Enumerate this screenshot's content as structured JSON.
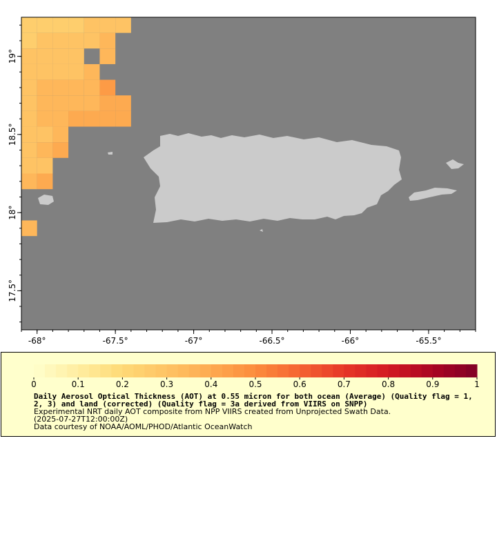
{
  "map": {
    "x_ticks": [
      "-68°",
      "-67.5°",
      "-67°",
      "-66.5°",
      "-66°",
      "-65.5°"
    ],
    "y_ticks": [
      "19°",
      "18.5°",
      "18°",
      "17.5°"
    ],
    "x_range": [
      -68.1,
      -65.2
    ],
    "y_range": [
      17.25,
      19.25
    ],
    "background_color": "#808080",
    "land_color": "#cbcbcb"
  },
  "legend": {
    "tick_labels": [
      "0",
      "0.1",
      "0.2",
      "0.3",
      "0.4",
      "0.5",
      "0.6",
      "0.7",
      "0.8",
      "0.9",
      "1"
    ],
    "range": [
      0,
      1
    ],
    "colormap": "YlOrRd",
    "background_color": "#ffffcc"
  },
  "caption": {
    "title_line1": "Daily Aerosol Optical Thickness (AOT) at 0.55 micron for both ocean (Average) (Quality flag = 1,",
    "title_line2": "2, 3) and land (corrected) (Quality flag = 3a derived from VIIRS on SNPP)",
    "description": "Experimental NRT daily AOT composite from NPP VIIRS created from Unprojected Swath Data.",
    "timestamp": "(2025-07-27T12:00:00Z)",
    "credit": "Data courtesy of NOAA/AOML/PHOD/Atlantic OceanWatch"
  },
  "aot_cells": [
    {
      "lon": -68.05,
      "lat": 19.2,
      "value": 0.25
    },
    {
      "lon": -67.95,
      "lat": 19.2,
      "value": 0.25
    },
    {
      "lon": -67.85,
      "lat": 19.2,
      "value": 0.25
    },
    {
      "lon": -67.75,
      "lat": 19.2,
      "value": 0.25
    },
    {
      "lon": -67.65,
      "lat": 19.2,
      "value": 0.3
    },
    {
      "lon": -67.55,
      "lat": 19.2,
      "value": 0.3
    },
    {
      "lon": -67.45,
      "lat": 19.2,
      "value": 0.3
    },
    {
      "lon": -68.05,
      "lat": 19.1,
      "value": 0.25
    },
    {
      "lon": -67.95,
      "lat": 19.1,
      "value": 0.3
    },
    {
      "lon": -67.85,
      "lat": 19.1,
      "value": 0.3
    },
    {
      "lon": -67.75,
      "lat": 19.1,
      "value": 0.3
    },
    {
      "lon": -67.65,
      "lat": 19.1,
      "value": 0.3
    },
    {
      "lon": -67.55,
      "lat": 19.1,
      "value": 0.35
    },
    {
      "lon": -68.05,
      "lat": 19.0,
      "value": 0.3
    },
    {
      "lon": -67.95,
      "lat": 19.0,
      "value": 0.3
    },
    {
      "lon": -67.85,
      "lat": 19.0,
      "value": 0.3
    },
    {
      "lon": -67.75,
      "lat": 19.0,
      "value": 0.3
    },
    {
      "lon": -67.55,
      "lat": 19.0,
      "value": 0.35
    },
    {
      "lon": -68.05,
      "lat": 18.9,
      "value": 0.3
    },
    {
      "lon": -67.95,
      "lat": 18.9,
      "value": 0.3
    },
    {
      "lon": -67.85,
      "lat": 18.9,
      "value": 0.3
    },
    {
      "lon": -67.75,
      "lat": 18.9,
      "value": 0.3
    },
    {
      "lon": -67.65,
      "lat": 18.9,
      "value": 0.35
    },
    {
      "lon": -68.05,
      "lat": 18.8,
      "value": 0.3
    },
    {
      "lon": -67.95,
      "lat": 18.8,
      "value": 0.35
    },
    {
      "lon": -67.85,
      "lat": 18.8,
      "value": 0.35
    },
    {
      "lon": -67.75,
      "lat": 18.8,
      "value": 0.35
    },
    {
      "lon": -67.65,
      "lat": 18.8,
      "value": 0.35
    },
    {
      "lon": -67.55,
      "lat": 18.8,
      "value": 0.45
    },
    {
      "lon": -68.05,
      "lat": 18.7,
      "value": 0.3
    },
    {
      "lon": -67.95,
      "lat": 18.7,
      "value": 0.35
    },
    {
      "lon": -67.85,
      "lat": 18.7,
      "value": 0.35
    },
    {
      "lon": -67.75,
      "lat": 18.7,
      "value": 0.35
    },
    {
      "lon": -67.65,
      "lat": 18.7,
      "value": 0.35
    },
    {
      "lon": -67.55,
      "lat": 18.7,
      "value": 0.4
    },
    {
      "lon": -67.45,
      "lat": 18.7,
      "value": 0.4
    },
    {
      "lon": -68.05,
      "lat": 18.6,
      "value": 0.3
    },
    {
      "lon": -67.95,
      "lat": 18.6,
      "value": 0.35
    },
    {
      "lon": -67.85,
      "lat": 18.6,
      "value": 0.35
    },
    {
      "lon": -67.75,
      "lat": 18.6,
      "value": 0.4
    },
    {
      "lon": -67.65,
      "lat": 18.6,
      "value": 0.4
    },
    {
      "lon": -67.55,
      "lat": 18.6,
      "value": 0.4
    },
    {
      "lon": -67.45,
      "lat": 18.6,
      "value": 0.4
    },
    {
      "lon": -68.05,
      "lat": 18.5,
      "value": 0.3
    },
    {
      "lon": -67.95,
      "lat": 18.5,
      "value": 0.3
    },
    {
      "lon": -67.85,
      "lat": 18.5,
      "value": 0.35
    },
    {
      "lon": -68.05,
      "lat": 18.4,
      "value": 0.3
    },
    {
      "lon": -67.95,
      "lat": 18.4,
      "value": 0.35
    },
    {
      "lon": -67.85,
      "lat": 18.4,
      "value": 0.4
    },
    {
      "lon": -68.05,
      "lat": 18.3,
      "value": 0.3
    },
    {
      "lon": -67.95,
      "lat": 18.3,
      "value": 0.3
    },
    {
      "lon": -68.05,
      "lat": 18.2,
      "value": 0.35
    },
    {
      "lon": -67.95,
      "lat": 18.2,
      "value": 0.4
    },
    {
      "lon": -68.05,
      "lat": 17.9,
      "value": 0.35
    }
  ]
}
